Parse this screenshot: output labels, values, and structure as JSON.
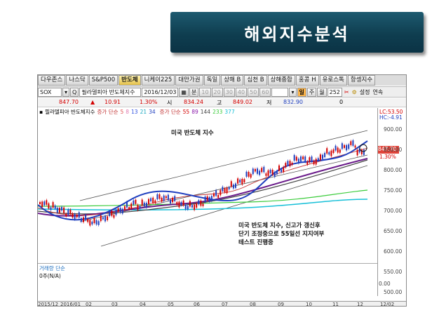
{
  "title": "해외지수분석",
  "tabs": [
    "다우존스",
    "나스닥",
    "S&P500",
    "반도체",
    "니케이225",
    "대만가권",
    "독일",
    "상해 B",
    "심천 B",
    "상해종합",
    "홍콩 H",
    "유로스톡",
    "항셍지수"
  ],
  "active_tab": "반도체",
  "toolbar": {
    "code": "SOX",
    "name": "필라델피아 반도체지수",
    "date": "2016/12/03",
    "unit": "분",
    "minute_options": [
      "10",
      "20",
      "30",
      "40",
      "50",
      "60"
    ],
    "periods": [
      "일",
      "주",
      "월"
    ],
    "selected_period": "일",
    "count": "252",
    "settings_label": "설정",
    "continuous_label": "연속"
  },
  "quote": {
    "price": "847.70",
    "change_arrow": "▲",
    "change": "10.91",
    "change_pct": "1.30%",
    "open_label": "시",
    "open": "834.24",
    "high_label": "고",
    "high": "849.02",
    "low_label": "저",
    "low": "832.90",
    "volume": "0"
  },
  "legend": {
    "name": "필라델피아 반도체지수",
    "ma_simple_label": "증가 단순",
    "ma_simple": [
      "5",
      "8",
      "13",
      "21",
      "34"
    ],
    "ma_simple2_label": "증가 단순",
    "ma_simple2": [
      "55",
      "89",
      "144",
      "233",
      "377"
    ]
  },
  "right_scale": {
    "lc": "LC:53.50",
    "hc": "HC:-4.91",
    "ticks": [
      "900.00",
      "850.00",
      "800.00",
      "750.00",
      "700.00",
      "650.00",
      "600.00",
      "550.00",
      "500.00"
    ],
    "current_price": "847.70",
    "current_pct": "1.30%",
    "vol_ticks": [
      "0.00"
    ]
  },
  "annotations": {
    "chart_title": "미국 반도체 지수",
    "comment_line1": "미국 반도체 지수, 신고가 갱신후",
    "comment_line2": "단기 조정중으로 55일선 지지여부",
    "comment_line3": "테스트 진행중"
  },
  "volume": {
    "label": "거래량 단순",
    "value": "0주(N/A)"
  },
  "time_axis": [
    "2015/12",
    "2016/01",
    "02",
    "03",
    "04",
    "05",
    "06",
    "07",
    "08",
    "09",
    "10",
    "11",
    "12",
    "12/02"
  ],
  "colors": {
    "banner": "#0f3e50",
    "up": "#d40000",
    "down": "#1f3fbf",
    "active_tab": "#e4c14a",
    "ma_blue": "#1f3fbf",
    "ma_purple": "#6a1a8a",
    "ma_cyan": "#18c0d8",
    "ma_green": "#3ccc3c"
  }
}
